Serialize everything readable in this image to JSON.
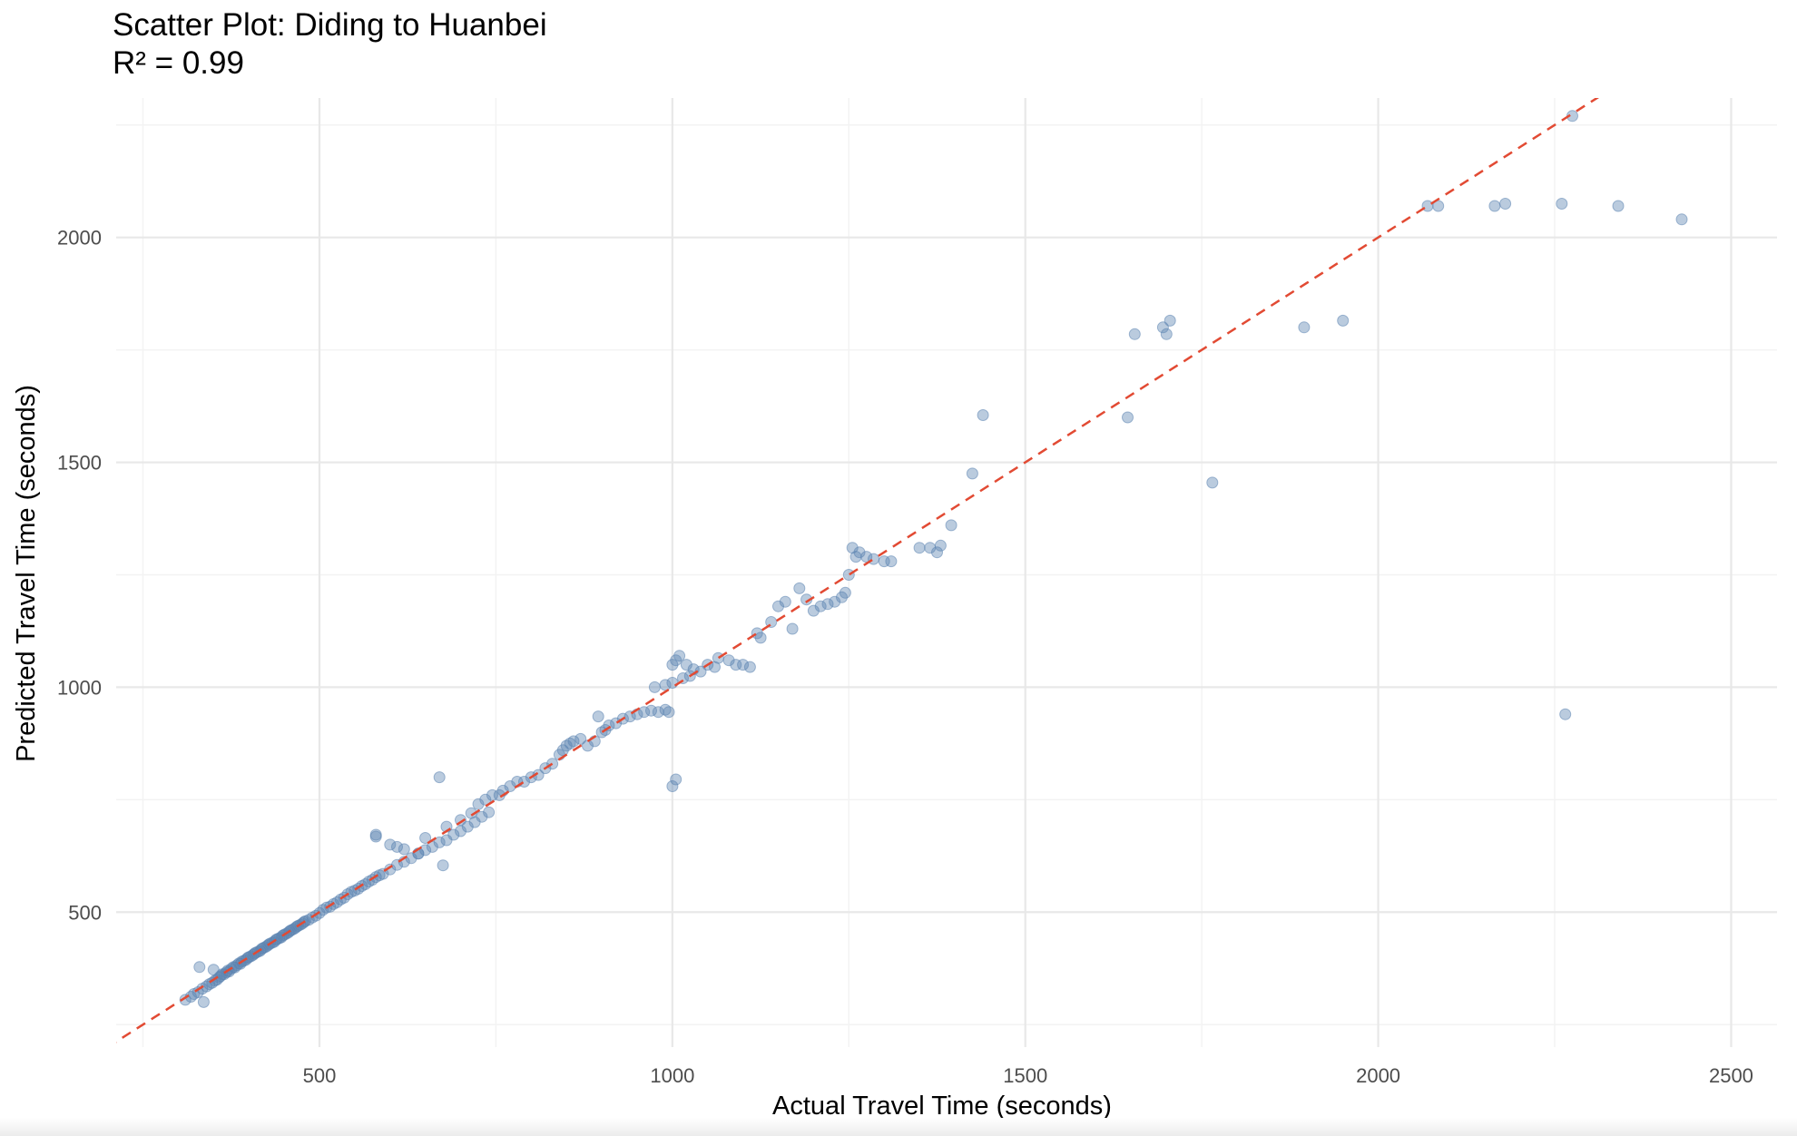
{
  "chart_data": {
    "type": "scatter",
    "title": "Scatter Plot: Diding to Huanbei",
    "subtitle": "R² = 0.99",
    "xlabel": "Actual Travel Time (seconds)",
    "ylabel": "Predicted Travel Time (seconds)",
    "xlim": [
      212,
      2565
    ],
    "ylim": [
      200,
      2310
    ],
    "x_ticks": [
      500,
      1000,
      1500,
      2000,
      2500
    ],
    "y_ticks": [
      500,
      1000,
      1500,
      2000
    ],
    "x_tick_labels": [
      "500",
      "1000",
      "1500",
      "2000",
      "2500"
    ],
    "y_tick_labels": [
      "500",
      "1000",
      "1500",
      "2000"
    ],
    "grid": true,
    "legend": "none",
    "point_color": "#5b84b1",
    "reference_line": {
      "type": "identity",
      "color": "#e24a33",
      "style": "dashed"
    },
    "series": [
      {
        "points": [
          [
            310,
            305
          ],
          [
            318,
            312
          ],
          [
            322,
            318
          ],
          [
            328,
            322
          ],
          [
            330,
            378
          ],
          [
            334,
            330
          ],
          [
            336,
            300
          ],
          [
            340,
            335
          ],
          [
            344,
            340
          ],
          [
            348,
            343
          ],
          [
            350,
            372
          ],
          [
            352,
            348
          ],
          [
            355,
            350
          ],
          [
            358,
            355
          ],
          [
            360,
            358
          ],
          [
            362,
            362
          ],
          [
            365,
            362
          ],
          [
            368,
            366
          ],
          [
            370,
            370
          ],
          [
            372,
            368
          ],
          [
            375,
            374
          ],
          [
            378,
            378
          ],
          [
            380,
            377
          ],
          [
            383,
            382
          ],
          [
            386,
            386
          ],
          [
            388,
            385
          ],
          [
            390,
            390
          ],
          [
            393,
            392
          ],
          [
            396,
            394
          ],
          [
            398,
            398
          ],
          [
            400,
            400
          ],
          [
            403,
            402
          ],
          [
            406,
            405
          ],
          [
            408,
            408
          ],
          [
            410,
            410
          ],
          [
            413,
            412
          ],
          [
            416,
            414
          ],
          [
            418,
            418
          ],
          [
            420,
            420
          ],
          [
            423,
            422
          ],
          [
            426,
            425
          ],
          [
            428,
            428
          ],
          [
            430,
            430
          ],
          [
            433,
            432
          ],
          [
            436,
            434
          ],
          [
            438,
            438
          ],
          [
            440,
            440
          ],
          [
            443,
            442
          ],
          [
            446,
            444
          ],
          [
            448,
            448
          ],
          [
            450,
            450
          ],
          [
            453,
            452
          ],
          [
            456,
            455
          ],
          [
            458,
            458
          ],
          [
            460,
            460
          ],
          [
            463,
            462
          ],
          [
            466,
            465
          ],
          [
            468,
            468
          ],
          [
            470,
            470
          ],
          [
            473,
            472
          ],
          [
            476,
            475
          ],
          [
            478,
            478
          ],
          [
            480,
            480
          ],
          [
            485,
            483
          ],
          [
            490,
            488
          ],
          [
            495,
            492
          ],
          [
            500,
            498
          ],
          [
            505,
            505
          ],
          [
            510,
            510
          ],
          [
            515,
            512
          ],
          [
            520,
            518
          ],
          [
            525,
            522
          ],
          [
            530,
            528
          ],
          [
            535,
            532
          ],
          [
            540,
            540
          ],
          [
            545,
            545
          ],
          [
            550,
            548
          ],
          [
            555,
            552
          ],
          [
            560,
            558
          ],
          [
            565,
            562
          ],
          [
            570,
            568
          ],
          [
            575,
            572
          ],
          [
            580,
            578
          ],
          [
            585,
            582
          ],
          [
            590,
            585
          ],
          [
            600,
            595
          ],
          [
            610,
            605
          ],
          [
            620,
            612
          ],
          [
            630,
            620
          ],
          [
            640,
            630
          ],
          [
            650,
            638
          ],
          [
            660,
            645
          ],
          [
            670,
            655
          ],
          [
            680,
            660
          ],
          [
            690,
            672
          ],
          [
            700,
            680
          ],
          [
            710,
            690
          ],
          [
            720,
            700
          ],
          [
            730,
            712
          ],
          [
            740,
            722
          ],
          [
            580,
            668
          ],
          [
            580,
            672
          ],
          [
            600,
            650
          ],
          [
            610,
            645
          ],
          [
            620,
            640
          ],
          [
            640,
            630
          ],
          [
            650,
            665
          ],
          [
            670,
            800
          ],
          [
            675,
            604
          ],
          [
            680,
            690
          ],
          [
            700,
            705
          ],
          [
            715,
            720
          ],
          [
            725,
            740
          ],
          [
            735,
            750
          ],
          [
            745,
            760
          ],
          [
            755,
            760
          ],
          [
            760,
            770
          ],
          [
            770,
            780
          ],
          [
            780,
            790
          ],
          [
            790,
            790
          ],
          [
            800,
            800
          ],
          [
            810,
            805
          ],
          [
            820,
            820
          ],
          [
            830,
            830
          ],
          [
            840,
            850
          ],
          [
            845,
            860
          ],
          [
            850,
            870
          ],
          [
            855,
            875
          ],
          [
            860,
            880
          ],
          [
            870,
            885
          ],
          [
            880,
            870
          ],
          [
            890,
            880
          ],
          [
            895,
            935
          ],
          [
            900,
            900
          ],
          [
            905,
            905
          ],
          [
            910,
            915
          ],
          [
            920,
            920
          ],
          [
            930,
            930
          ],
          [
            940,
            935
          ],
          [
            950,
            940
          ],
          [
            960,
            945
          ],
          [
            970,
            948
          ],
          [
            980,
            945
          ],
          [
            990,
            950
          ],
          [
            995,
            945
          ],
          [
            1000,
            1050
          ],
          [
            1005,
            1060
          ],
          [
            1010,
            1070
          ],
          [
            1020,
            1050
          ],
          [
            1030,
            1040
          ],
          [
            1040,
            1035
          ],
          [
            1050,
            1050
          ],
          [
            1060,
            1045
          ],
          [
            1065,
            1065
          ],
          [
            1080,
            1060
          ],
          [
            1090,
            1050
          ],
          [
            1100,
            1050
          ],
          [
            1110,
            1045
          ],
          [
            1120,
            1120
          ],
          [
            1125,
            1110
          ],
          [
            1000,
            780
          ],
          [
            1005,
            795
          ],
          [
            975,
            1000
          ],
          [
            990,
            1005
          ],
          [
            1000,
            1010
          ],
          [
            1015,
            1020
          ],
          [
            1025,
            1025
          ],
          [
            1140,
            1145
          ],
          [
            1150,
            1180
          ],
          [
            1160,
            1190
          ],
          [
            1170,
            1130
          ],
          [
            1180,
            1220
          ],
          [
            1190,
            1195
          ],
          [
            1200,
            1170
          ],
          [
            1210,
            1180
          ],
          [
            1220,
            1185
          ],
          [
            1230,
            1190
          ],
          [
            1240,
            1200
          ],
          [
            1245,
            1210
          ],
          [
            1250,
            1250
          ],
          [
            1255,
            1310
          ],
          [
            1260,
            1290
          ],
          [
            1265,
            1300
          ],
          [
            1275,
            1290
          ],
          [
            1285,
            1285
          ],
          [
            1300,
            1280
          ],
          [
            1310,
            1280
          ],
          [
            1350,
            1310
          ],
          [
            1365,
            1310
          ],
          [
            1375,
            1300
          ],
          [
            1380,
            1315
          ],
          [
            1395,
            1360
          ],
          [
            1425,
            1475
          ],
          [
            1440,
            1605
          ],
          [
            1645,
            1600
          ],
          [
            1655,
            1785
          ],
          [
            1695,
            1800
          ],
          [
            1700,
            1785
          ],
          [
            1705,
            1815
          ],
          [
            1765,
            1455
          ],
          [
            1895,
            1800
          ],
          [
            1950,
            1815
          ],
          [
            2070,
            2070
          ],
          [
            2085,
            2070
          ],
          [
            2165,
            2070
          ],
          [
            2180,
            2075
          ],
          [
            2260,
            2075
          ],
          [
            2275,
            2270
          ],
          [
            2340,
            2070
          ],
          [
            2430,
            2040
          ],
          [
            2265,
            940
          ]
        ]
      }
    ]
  }
}
